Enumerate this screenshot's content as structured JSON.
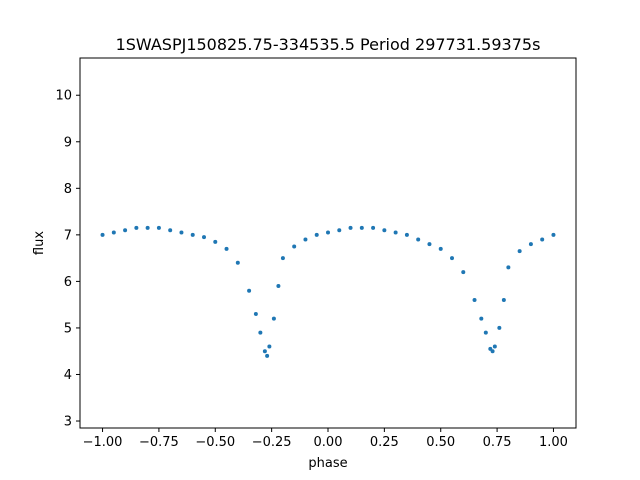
{
  "chart_data": {
    "type": "scatter",
    "title": "1SWASPJ150825.75-334535.5 Period 297731.59375s",
    "xlabel": "phase",
    "ylabel": "flux",
    "xlim": [
      -1.1,
      1.1
    ],
    "ylim": [
      2.85,
      10.8
    ],
    "xticks": [
      -1.0,
      -0.75,
      -0.5,
      -0.25,
      0.0,
      0.25,
      0.5,
      0.75,
      1.0
    ],
    "xtick_labels": [
      "−1.00",
      "−0.75",
      "−0.50",
      "−0.25",
      "0.00",
      "0.25",
      "0.50",
      "0.75",
      "1.00"
    ],
    "yticks": [
      3,
      4,
      5,
      6,
      7,
      8,
      9,
      10
    ],
    "ytick_labels": [
      "3",
      "4",
      "5",
      "6",
      "7",
      "8",
      "9",
      "10"
    ],
    "grid": false,
    "point_color": "#1f77b4",
    "series": [
      {
        "x": [
          -1.0,
          -0.95,
          -0.9,
          -0.85,
          -0.8,
          -0.75,
          -0.7,
          -0.65,
          -0.6,
          -0.55,
          -0.5,
          -0.45,
          -0.4,
          -0.35,
          -0.32,
          -0.3,
          -0.28,
          -0.27,
          -0.26,
          -0.24,
          -0.22,
          -0.2,
          -0.15,
          -0.1,
          -0.05,
          0.0,
          0.05,
          0.1,
          0.15,
          0.2,
          0.25,
          0.3,
          0.35,
          0.4,
          0.45,
          0.5,
          0.55,
          0.6,
          0.65,
          0.68,
          0.7,
          0.72,
          0.73,
          0.74,
          0.76,
          0.78,
          0.8,
          0.85,
          0.9,
          0.95,
          1.0
        ],
        "y": [
          7.0,
          7.05,
          7.1,
          7.15,
          7.15,
          7.15,
          7.1,
          7.05,
          7.0,
          6.95,
          6.85,
          6.7,
          6.4,
          5.8,
          5.3,
          4.9,
          4.5,
          4.4,
          4.6,
          5.2,
          5.9,
          6.5,
          6.75,
          6.9,
          7.0,
          7.05,
          7.1,
          7.15,
          7.15,
          7.15,
          7.1,
          7.05,
          7.0,
          6.9,
          6.8,
          6.7,
          6.5,
          6.2,
          5.6,
          5.2,
          4.9,
          4.55,
          4.5,
          4.6,
          5.0,
          5.6,
          6.3,
          6.65,
          6.8,
          6.9,
          7.0
        ]
      }
    ]
  }
}
